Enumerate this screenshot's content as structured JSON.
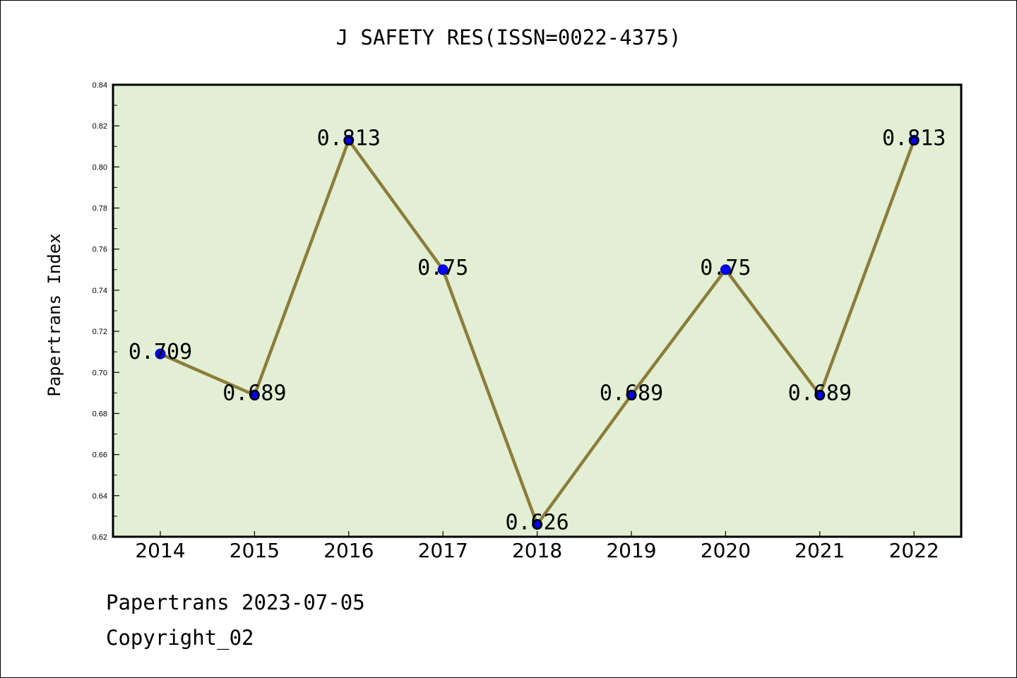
{
  "chart_data": {
    "type": "line",
    "title": "J SAFETY RES(ISSN=0022-4375)",
    "ylabel": "Papertrans Index",
    "xlabel": "",
    "categories": [
      "2014",
      "2015",
      "2016",
      "2017",
      "2018",
      "2019",
      "2020",
      "2021",
      "2022"
    ],
    "values": [
      0.709,
      0.689,
      0.813,
      0.75,
      0.626,
      0.689,
      0.75,
      0.689,
      0.813
    ],
    "data_labels": [
      "0.709",
      "0.689",
      "0.813",
      "0.75",
      "0.626",
      "0.689",
      "0.75",
      "0.689",
      "0.813"
    ],
    "ylim": [
      0.62,
      0.84
    ],
    "yticks": [
      "0.62",
      "0.64",
      "0.66",
      "0.68",
      "0.70",
      "0.72",
      "0.74",
      "0.76",
      "0.78",
      "0.80",
      "0.82",
      "0.84"
    ],
    "grid": false,
    "legend": "none",
    "colors": {
      "plot_background": "#e2efd4",
      "line": "#8b7d3a",
      "marker": "#0000ff"
    }
  },
  "footer": {
    "line1": "Papertrans 2023-07-05",
    "line2": "Copyright_02"
  }
}
